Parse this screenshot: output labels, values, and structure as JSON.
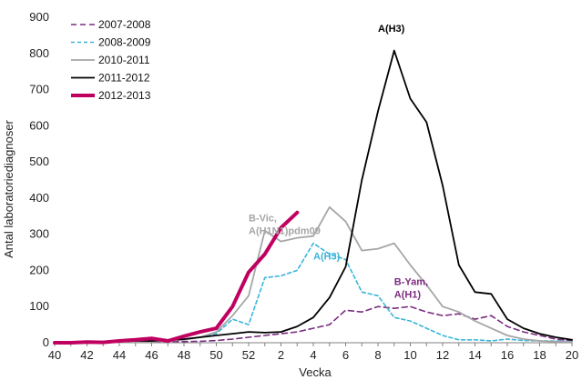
{
  "chart_data": {
    "type": "line",
    "title": "",
    "xlabel": "Vecka",
    "ylabel": "Antal laboratoriediagnoser",
    "ylim": [
      0,
      900
    ],
    "yticks": [
      "0",
      "100",
      "200",
      "300",
      "400",
      "500",
      "600",
      "700",
      "800",
      "900"
    ],
    "x_tick_labels": [
      "40",
      "42",
      "44",
      "46",
      "48",
      "50",
      "52",
      "2",
      "4",
      "6",
      "8",
      "10",
      "12",
      "14",
      "16",
      "18",
      "20"
    ],
    "grid": false,
    "legend_position": "top-left",
    "series": [
      {
        "name": "2007-2008",
        "color": "#7b2c7f",
        "dash": "6,4",
        "width": 1.6,
        "x": [
          "40",
          "41",
          "42",
          "43",
          "44",
          "45",
          "46",
          "47",
          "48",
          "49",
          "50",
          "51",
          "52",
          "1",
          "2",
          "3",
          "4",
          "5",
          "6",
          "7",
          "8",
          "9",
          "10",
          "11",
          "12",
          "13",
          "14",
          "15",
          "16",
          "17",
          "18",
          "19",
          "20"
        ],
        "values": [
          1,
          1,
          2,
          1,
          2,
          2,
          3,
          3,
          3,
          4,
          6,
          10,
          15,
          20,
          25,
          30,
          40,
          50,
          90,
          85,
          100,
          95,
          100,
          85,
          75,
          80,
          65,
          75,
          45,
          30,
          20,
          10,
          5
        ]
      },
      {
        "name": "2008-2009",
        "color": "#3ab5d9",
        "dash": "4,3",
        "width": 1.6,
        "x": [
          "40",
          "41",
          "42",
          "43",
          "44",
          "45",
          "46",
          "47",
          "48",
          "49",
          "50",
          "51",
          "52",
          "1",
          "2",
          "3",
          "4",
          "5",
          "6",
          "7",
          "8",
          "9",
          "10",
          "11",
          "12",
          "13",
          "14",
          "15",
          "16",
          "17",
          "18",
          "19",
          "20"
        ],
        "values": [
          0,
          1,
          1,
          1,
          2,
          3,
          5,
          6,
          8,
          15,
          25,
          65,
          50,
          180,
          185,
          200,
          275,
          245,
          230,
          140,
          130,
          70,
          60,
          40,
          20,
          8,
          8,
          5,
          10,
          6,
          5,
          5,
          3
        ]
      },
      {
        "name": "2010-2011",
        "color": "#a6a6a6",
        "dash": "",
        "width": 1.8,
        "x": [
          "40",
          "41",
          "42",
          "43",
          "44",
          "45",
          "46",
          "47",
          "48",
          "49",
          "50",
          "51",
          "52",
          "1",
          "2",
          "3",
          "4",
          "5",
          "6",
          "7",
          "8",
          "9",
          "10",
          "11",
          "12",
          "13",
          "14",
          "15",
          "16",
          "17",
          "18",
          "19",
          "20"
        ],
        "values": [
          0,
          0,
          1,
          1,
          1,
          2,
          3,
          5,
          8,
          15,
          30,
          75,
          130,
          310,
          280,
          290,
          295,
          375,
          335,
          255,
          260,
          275,
          215,
          160,
          100,
          85,
          60,
          40,
          20,
          10,
          5,
          3,
          2
        ]
      },
      {
        "name": "2011-2012",
        "color": "#000000",
        "dash": "",
        "width": 1.8,
        "x": [
          "40",
          "41",
          "42",
          "43",
          "44",
          "45",
          "46",
          "47",
          "48",
          "49",
          "50",
          "51",
          "52",
          "1",
          "2",
          "3",
          "4",
          "5",
          "6",
          "7",
          "8",
          "9",
          "10",
          "11",
          "12",
          "13",
          "14",
          "15",
          "16",
          "17",
          "18",
          "19",
          "20"
        ],
        "values": [
          0,
          1,
          2,
          3,
          3,
          5,
          5,
          7,
          10,
          15,
          20,
          25,
          30,
          28,
          30,
          45,
          70,
          125,
          210,
          450,
          640,
          808,
          675,
          610,
          435,
          215,
          140,
          135,
          65,
          40,
          25,
          15,
          8
        ]
      },
      {
        "name": "2012-2013",
        "color": "#c00060",
        "dash": "",
        "width": 4,
        "x": [
          "40",
          "41",
          "42",
          "43",
          "44",
          "45",
          "46",
          "47",
          "48",
          "49",
          "50",
          "51",
          "52",
          "1",
          "2",
          "3"
        ],
        "values": [
          0,
          0,
          2,
          1,
          5,
          8,
          12,
          5,
          18,
          30,
          40,
          100,
          195,
          245,
          318,
          360
        ]
      }
    ],
    "annotations": [
      {
        "text": "A(H3)",
        "color": "#000000",
        "at_week": "8",
        "at_value": 860
      },
      {
        "text": "B-Vic,",
        "color": "#a6a6a6",
        "at_week": "52",
        "at_value": 335
      },
      {
        "text": "A(H1N1)pdm09",
        "color": "#a6a6a6",
        "at_week": "52",
        "at_value": 300
      },
      {
        "text": "A(H3)",
        "color": "#3ab5d9",
        "at_week": "4",
        "at_value": 230
      },
      {
        "text": "B-Yam,",
        "color": "#7b2c7f",
        "at_week": "9",
        "at_value": 160
      },
      {
        "text": "A(H1)",
        "color": "#7b2c7f",
        "at_week": "9",
        "at_value": 125
      }
    ]
  }
}
